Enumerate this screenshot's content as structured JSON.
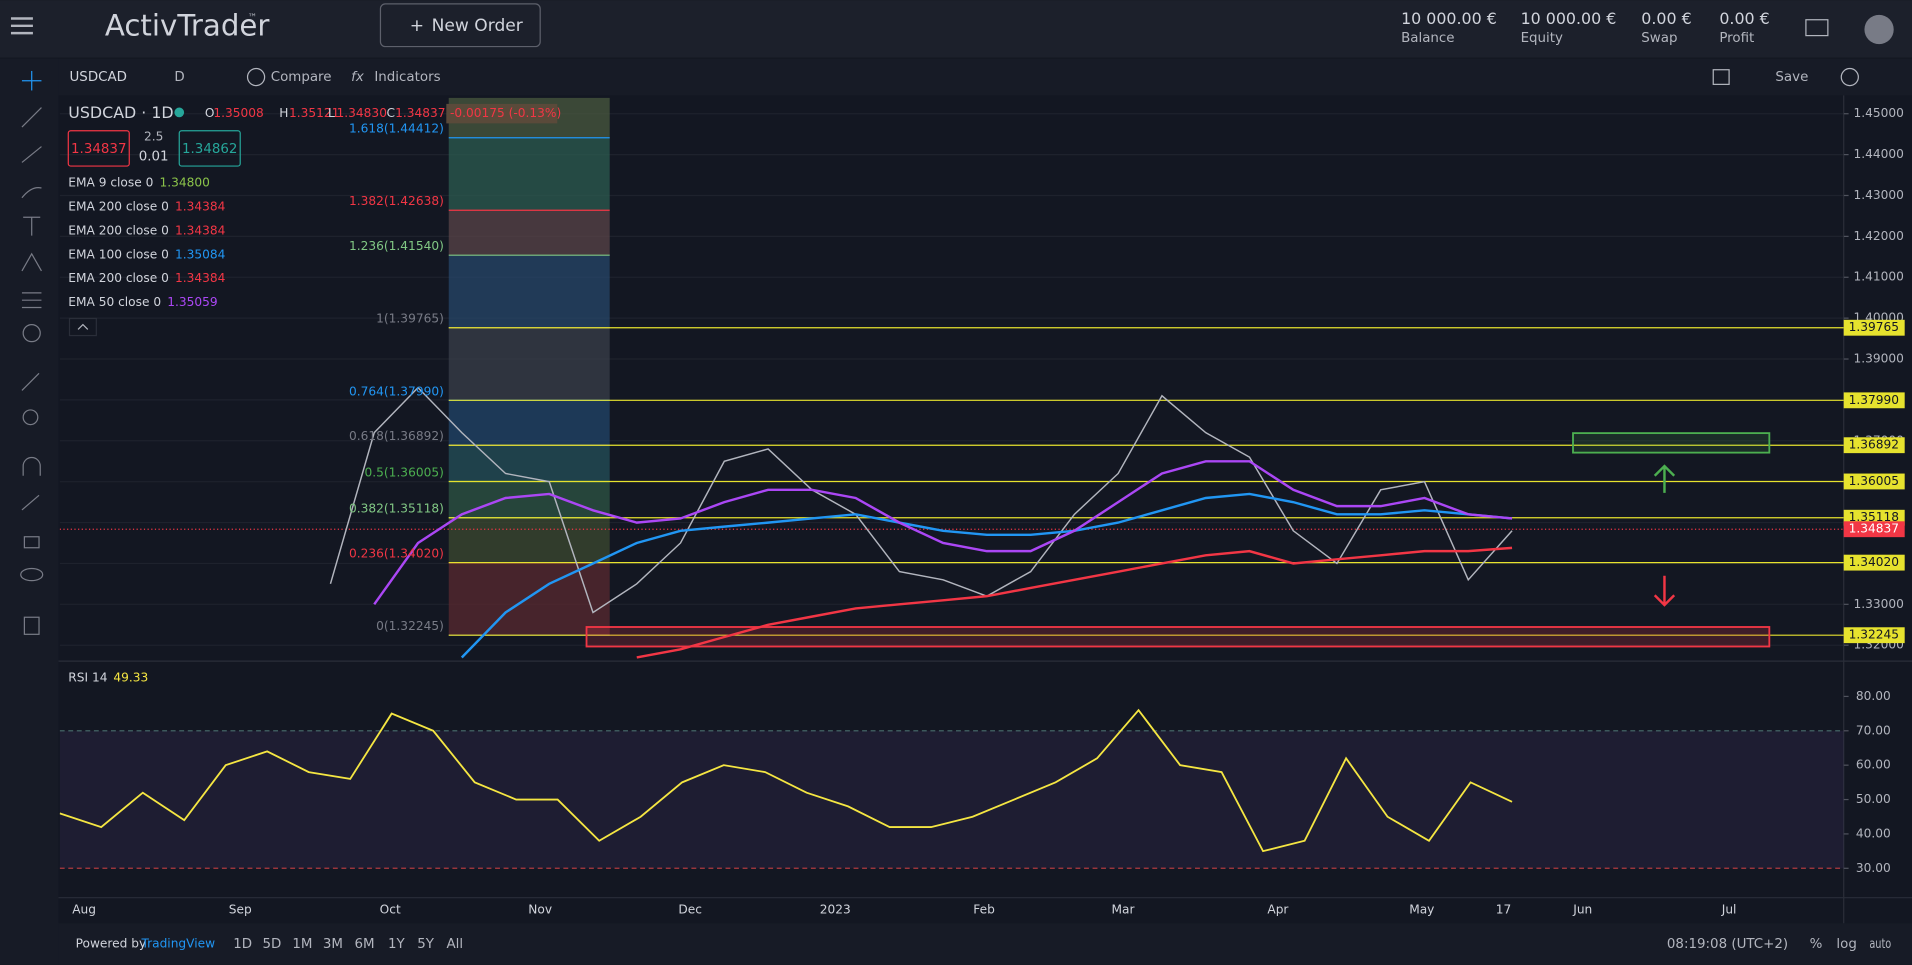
{
  "header": {
    "logo": "ActivTrader",
    "tm": "™",
    "new_order": "New Order",
    "stats": [
      {
        "value": "10 000.00 €",
        "label": "Balance"
      },
      {
        "value": "10 000.00 €",
        "label": "Equity"
      },
      {
        "value": "0.00 €",
        "label": "Swap"
      },
      {
        "value": "0.00 €",
        "label": "Profit"
      }
    ]
  },
  "toolbar": {
    "symbol": "USDCAD",
    "interval": "D",
    "compare": "Compare",
    "indicators": "Indicators",
    "save": "Save"
  },
  "legend": {
    "symbol": "USDCAD · 1D",
    "ohlc": [
      {
        "key": "O",
        "value": "1.35008"
      },
      {
        "key": "H",
        "value": "1.35121"
      },
      {
        "key": "L",
        "value": "1.34830"
      },
      {
        "key": "C",
        "value": "1.34837"
      }
    ],
    "change": "-0.00175 (-0.13%)",
    "sell": "1.34837",
    "spread": "2.5",
    "lot": "0.01",
    "buy": "1.34862",
    "indicators": [
      {
        "name": "EMA 9 close 0",
        "value": "1.34800",
        "color": "#8bc34a"
      },
      {
        "name": "EMA 200 close 0",
        "value": "1.34384",
        "color": "#f23645"
      },
      {
        "name": "EMA 200 close 0",
        "value": "1.34384",
        "color": "#f23645"
      },
      {
        "name": "EMA 100 close 0",
        "value": "1.35084",
        "color": "#2196f3"
      },
      {
        "name": "EMA 200 close 0",
        "value": "1.34384",
        "color": "#f23645"
      },
      {
        "name": "EMA 50 close 0",
        "value": "1.35059",
        "color": "#ab47f5"
      }
    ]
  },
  "chart_data": {
    "type": "line",
    "ylim": [
      1.3167,
      1.4539
    ],
    "yticks": [
      {
        "value": 1.45,
        "label": "1.45000"
      },
      {
        "value": 1.44,
        "label": "1.44000"
      },
      {
        "value": 1.43,
        "label": "1.43000"
      },
      {
        "value": 1.42,
        "label": "1.42000"
      },
      {
        "value": 1.41,
        "label": "1.41000"
      },
      {
        "value": 1.4,
        "label": "1.40000"
      },
      {
        "value": 1.39,
        "label": "1.39000"
      },
      {
        "value": 1.38,
        "label": "1.38000"
      },
      {
        "value": 1.37,
        "label": "1.37000"
      },
      {
        "value": 1.36,
        "label": "1.36000"
      },
      {
        "value": 1.35,
        "label": "1.35000"
      },
      {
        "value": 1.34,
        "label": "1.34000"
      },
      {
        "value": 1.33,
        "label": "1.33000"
      },
      {
        "value": 1.32,
        "label": "1.32000"
      }
    ],
    "series": [
      {
        "color": "#b2b5be",
        "values": [
          1.335,
          1.372,
          1.383,
          1.372,
          1.362,
          1.36,
          1.328,
          1.335,
          1.345,
          1.365,
          1.368,
          1.358,
          1.352,
          1.338,
          1.336,
          1.332,
          1.338,
          1.352,
          1.362,
          1.381,
          1.372,
          1.366,
          1.348,
          1.34,
          1.358,
          1.36,
          1.336,
          1.348
        ]
      },
      {
        "color": "#f23645",
        "values": [
          null,
          null,
          null,
          null,
          null,
          null,
          null,
          1.317,
          1.319,
          1.322,
          1.325,
          1.327,
          1.329,
          1.33,
          1.331,
          1.332,
          1.334,
          1.336,
          1.338,
          1.34,
          1.342,
          1.343,
          1.34,
          1.341,
          1.342,
          1.343,
          1.343,
          1.3438
        ]
      },
      {
        "color": "#2196f3",
        "values": [
          null,
          null,
          null,
          1.317,
          1.328,
          1.335,
          1.34,
          1.345,
          1.348,
          1.349,
          1.35,
          1.351,
          1.352,
          1.35,
          1.348,
          1.347,
          1.347,
          1.348,
          1.35,
          1.353,
          1.356,
          1.357,
          1.355,
          1.352,
          1.352,
          1.353,
          1.352,
          1.351
        ]
      },
      {
        "color": "#ab47f5",
        "values": [
          null,
          1.33,
          1.345,
          1.352,
          1.356,
          1.357,
          1.353,
          1.35,
          1.351,
          1.355,
          1.358,
          1.358,
          1.356,
          1.35,
          1.345,
          1.343,
          1.343,
          1.348,
          1.355,
          1.362,
          1.365,
          1.365,
          1.358,
          1.354,
          1.354,
          1.356,
          1.352,
          1.351
        ]
      }
    ],
    "fib_levels": [
      {
        "label": "1.618(1.44412)",
        "value": 1.44412,
        "color": "#2196f3"
      },
      {
        "label": "1.382(1.42638)",
        "value": 1.42638,
        "color": "#f23645"
      },
      {
        "label": "1.236(1.41540)",
        "value": 1.4154,
        "color": "#81c784"
      },
      {
        "label": "1(1.39765)",
        "value": 1.39765,
        "color": "#787b86"
      },
      {
        "label": "0.764(1.37990)",
        "value": 1.3799,
        "color": "#2196f3"
      },
      {
        "label": "0.618(1.36892)",
        "value": 1.36892,
        "color": "#787b86"
      },
      {
        "label": "0.5(1.36005)",
        "value": 1.36005,
        "color": "#4caf50"
      },
      {
        "label": "0.382(1.35118)",
        "value": 1.35118,
        "color": "#81c784"
      },
      {
        "label": "0.236(1.34020)",
        "value": 1.3402,
        "color": "#f23645"
      },
      {
        "label": "0(1.32245)",
        "value": 1.32245,
        "color": "#787b86"
      }
    ],
    "price_tags": [
      {
        "value": 1.39765,
        "label": "1.39765"
      },
      {
        "value": 1.3799,
        "label": "1.37990"
      },
      {
        "value": 1.36892,
        "label": "1.36892"
      },
      {
        "value": 1.36005,
        "label": "1.36005"
      },
      {
        "value": 1.35118,
        "label": "1.35118"
      },
      {
        "value": 1.3402,
        "label": "1.34020"
      },
      {
        "value": 1.32245,
        "label": "1.32245"
      }
    ],
    "current_price": {
      "value": 1.34837,
      "label": "1.34837"
    }
  },
  "rsi": {
    "title": "RSI 14",
    "value": "49.33",
    "color": "#f5e642",
    "ylim": [
      21.8,
      89.2
    ],
    "yticks": [
      {
        "value": 80,
        "label": "80.00"
      },
      {
        "value": 70,
        "label": "70.00"
      },
      {
        "value": 60,
        "label": "60.00"
      },
      {
        "value": 50,
        "label": "50.00"
      },
      {
        "value": 40,
        "label": "40.00"
      },
      {
        "value": 30,
        "label": "30.00"
      }
    ],
    "levels": [
      70,
      30
    ],
    "values": [
      46,
      42,
      52,
      44,
      60,
      64,
      58,
      56,
      75,
      70,
      55,
      50,
      50,
      38,
      45,
      55,
      60,
      58,
      52,
      48,
      42,
      42,
      45,
      50,
      55,
      62,
      76,
      60,
      58,
      35,
      38,
      62,
      45,
      38,
      55,
      49.33
    ]
  },
  "x_axis": {
    "labels": [
      "Aug",
      "Sep",
      "Oct",
      "Nov",
      "Dec",
      "2023",
      "Feb",
      "Mar",
      "Apr",
      "May",
      "17",
      "Jun",
      "Jul"
    ]
  },
  "footer": {
    "powered": "Powered by",
    "brand": "TradingView",
    "ranges": [
      "1D",
      "5D",
      "1M",
      "3M",
      "6M",
      "1Y",
      "5Y",
      "All"
    ],
    "time": "08:19:08 (UTC+2)",
    "percent": "%",
    "log": "log",
    "auto": "auto"
  }
}
